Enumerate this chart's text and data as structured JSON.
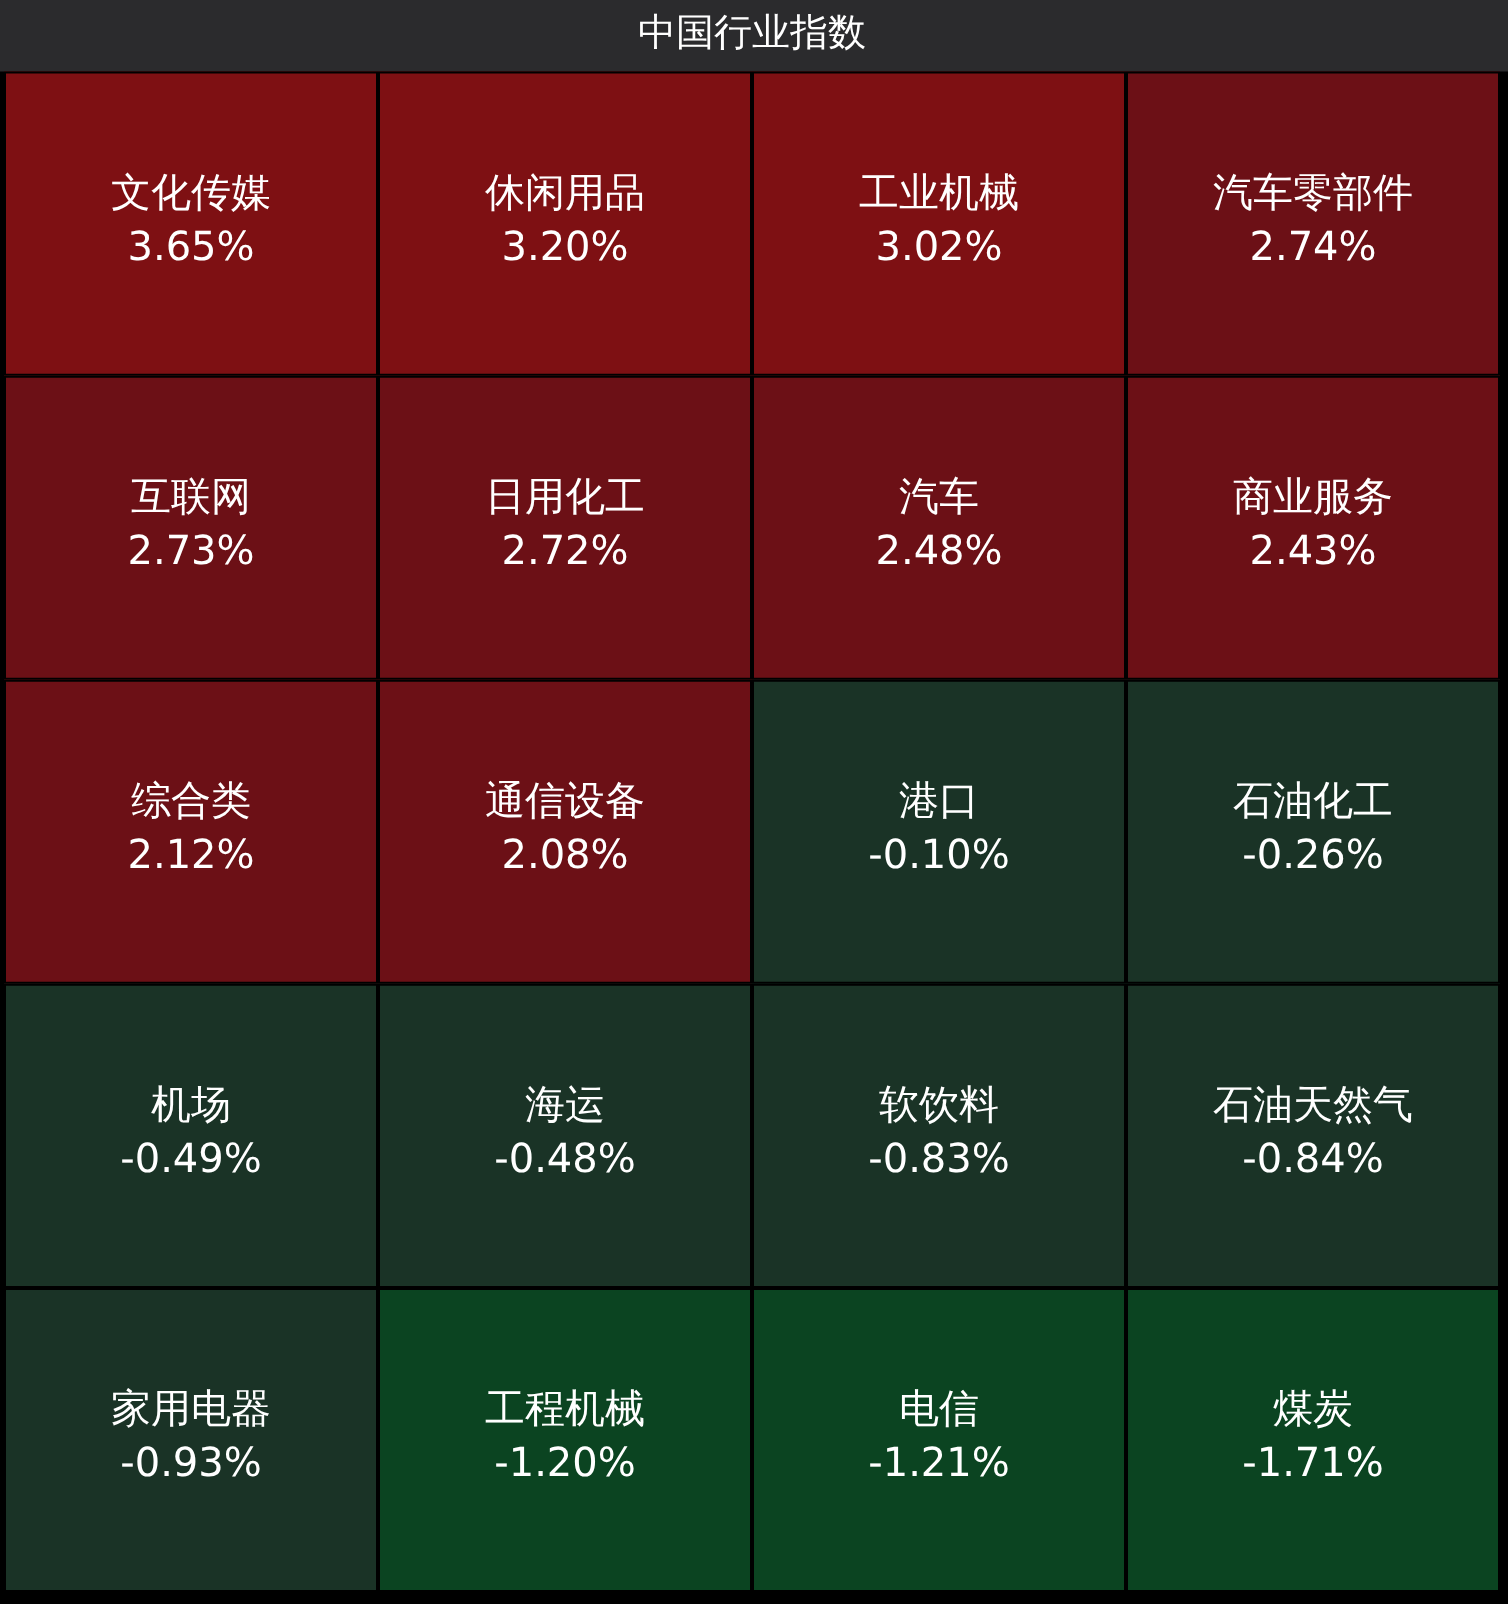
{
  "chart_data": {
    "type": "other",
    "title": "中国行业指数",
    "categories": [
      "文化传媒",
      "休闲用品",
      "工业机械",
      "汽车零部件",
      "互联网",
      "日用化工",
      "汽车",
      "商业服务",
      "综合类",
      "通信设备",
      "港口",
      "石油化工",
      "机场",
      "海运",
      "软饮料",
      "石油天然气",
      "家用电器",
      "工程机械",
      "电信",
      "煤炭"
    ],
    "values": [
      3.65,
      3.2,
      3.02,
      2.74,
      2.73,
      2.72,
      2.48,
      2.43,
      2.12,
      2.08,
      -0.1,
      -0.26,
      -0.49,
      -0.48,
      -0.83,
      -0.84,
      -0.93,
      -1.2,
      -1.21,
      -1.71
    ],
    "value_labels": [
      "3.65%",
      "3.20%",
      "3.02%",
      "2.74%",
      "2.73%",
      "2.72%",
      "2.48%",
      "2.43%",
      "2.12%",
      "2.08%",
      "-0.10%",
      "-0.26%",
      "-0.49%",
      "-0.48%",
      "-0.83%",
      "-0.84%",
      "-0.93%",
      "-1.20%",
      "-1.21%",
      "-1.71%"
    ],
    "colors": [
      "#7e1013",
      "#7e1013",
      "#7e1013",
      "#6c1016",
      "#6c1016",
      "#6c1016",
      "#6c1016",
      "#6c1016",
      "#6c1016",
      "#6c1016",
      "#1a3326",
      "#1a3326",
      "#1a3326",
      "#1a3326",
      "#1a3326",
      "#1a3326",
      "#1a3326",
      "#0b4421",
      "#0b4421",
      "#0b4421"
    ]
  }
}
